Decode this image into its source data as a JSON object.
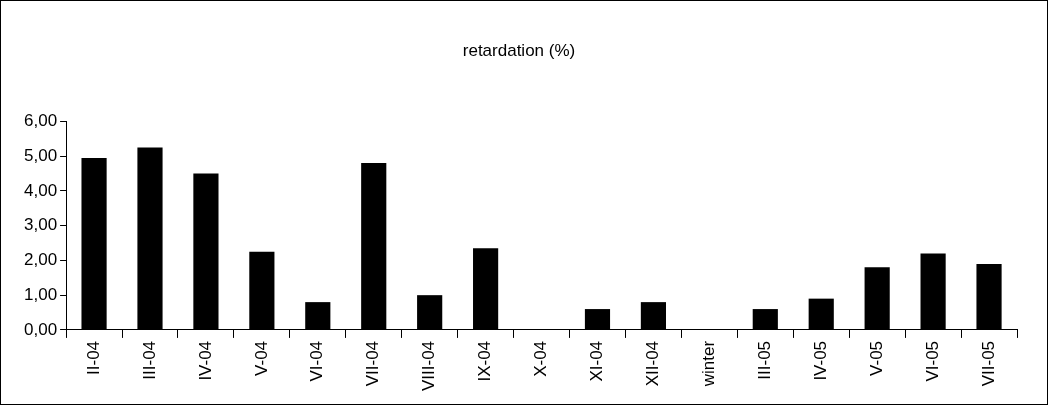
{
  "chart_data": {
    "type": "bar",
    "title": "retardation (%)",
    "categories": [
      "II-04",
      "III-04",
      "IV-04",
      "V-04",
      "VI-04",
      "VII-04",
      "VIII-04",
      "IX-04",
      "X-04",
      "XI-04",
      "XII-04",
      "winter",
      "III-05",
      "IV-05",
      "V-05",
      "VI-05",
      "VII-05"
    ],
    "values": [
      4.95,
      5.25,
      4.5,
      2.25,
      0.8,
      4.8,
      1.0,
      2.35,
      null,
      0.6,
      0.8,
      null,
      0.6,
      0.9,
      1.8,
      2.2,
      1.9
    ],
    "color": "#000000",
    "ylim": [
      0,
      6
    ],
    "yticks": [
      {
        "value": 0,
        "label": "0,00"
      },
      {
        "value": 1,
        "label": "1,00"
      },
      {
        "value": 2,
        "label": "2,00"
      },
      {
        "value": 3,
        "label": "3,00"
      },
      {
        "value": 4,
        "label": "4,00"
      },
      {
        "value": 5,
        "label": "5,00"
      },
      {
        "value": 6,
        "label": "6,00"
      }
    ],
    "grid": false,
    "legend": false
  }
}
